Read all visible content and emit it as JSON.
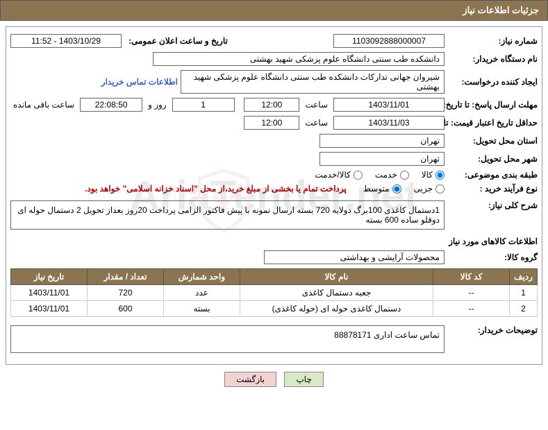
{
  "header": {
    "title": "جزئیات اطلاعات نیاز"
  },
  "fields": {
    "need_number_label": "شماره نیاز:",
    "need_number": "1103092888000007",
    "announce_label": "تاریخ و ساعت اعلان عمومی:",
    "announce_value": "1403/10/29 - 11:52",
    "buyer_org_label": "نام دستگاه خریدار:",
    "buyer_org": "دانشکده طب سنتی دانشگاه علوم پزشکی شهید بهشتی",
    "requester_label": "ایجاد کننده درخواست:",
    "requester": "شیروان  جهانی تدارکات  دانشکده طب سنتی دانشگاه علوم پزشکی شهید بهشتی",
    "contact_link": "اطلاعات تماس خریدار",
    "deadline_label": "مهلت ارسال پاسخ: تا تاریخ:",
    "deadline_date": "1403/11/01",
    "time_word": "ساعت",
    "deadline_time": "12:00",
    "day_word": "روز و",
    "days_remain": "1",
    "countdown": "22:08:50",
    "remain_label": "ساعت باقی مانده",
    "validity_label": "حداقل تاریخ اعتبار قیمت: تا تاریخ:",
    "validity_date": "1403/11/03",
    "validity_time": "12:00",
    "province_label": "استان محل تحویل:",
    "province": "تهران",
    "city_label": "شهر محل تحویل:",
    "city": "تهران",
    "category_label": "طبقه بندی موضوعی:",
    "cat_goods": "کالا",
    "cat_service": "خدمت",
    "cat_both": "کالا/خدمت",
    "process_label": "نوع فرآیند خرید :",
    "proc_partial": "جزیی",
    "proc_medium": "متوسط",
    "process_note": "پرداخت تمام یا بخشی از مبلغ خرید،از محل \"اسناد خزانه اسلامی\" خواهد بود.",
    "general_label": "شرح کلی نیاز:",
    "general_desc": "1دستمال کاغذی 100برگ دولایه 720 بسته ارسال نمونه با پیش فاکتور  الزامی پرداخت 20روز بعداز تحویل 2 دستمال حوله ای دوقلو ساده 600 بسته",
    "items_title": "اطلاعات کالاهای مورد نیاز",
    "group_label": "گروه کالا:",
    "group_value": "محصولات آرایشی و بهداشتی",
    "buyer_note_label": "توضیحات خریدار:",
    "buyer_note": "تماس ساعت اداری 88878171"
  },
  "table": {
    "headers": [
      "ردیف",
      "کد کالا",
      "نام کالا",
      "واحد شمارش",
      "تعداد / مقدار",
      "تاریخ نیاز"
    ],
    "rows": [
      [
        "1",
        "--",
        "جعبه دستمال کاغذی",
        "عدد",
        "720",
        "1403/11/01"
      ],
      [
        "2",
        "--",
        "دستمال کاغذی حوله ای (حوله کاغذی)",
        "بسته",
        "600",
        "1403/11/01"
      ]
    ],
    "col_widths": [
      "40px",
      "110px",
      "auto",
      "110px",
      "110px",
      "110px"
    ],
    "header_bg": "#8a7550"
  },
  "buttons": {
    "print": "چاپ",
    "back": "بازگشت"
  },
  "watermark": {
    "text": "AriaTender.net",
    "shield_color": "#c04040"
  }
}
